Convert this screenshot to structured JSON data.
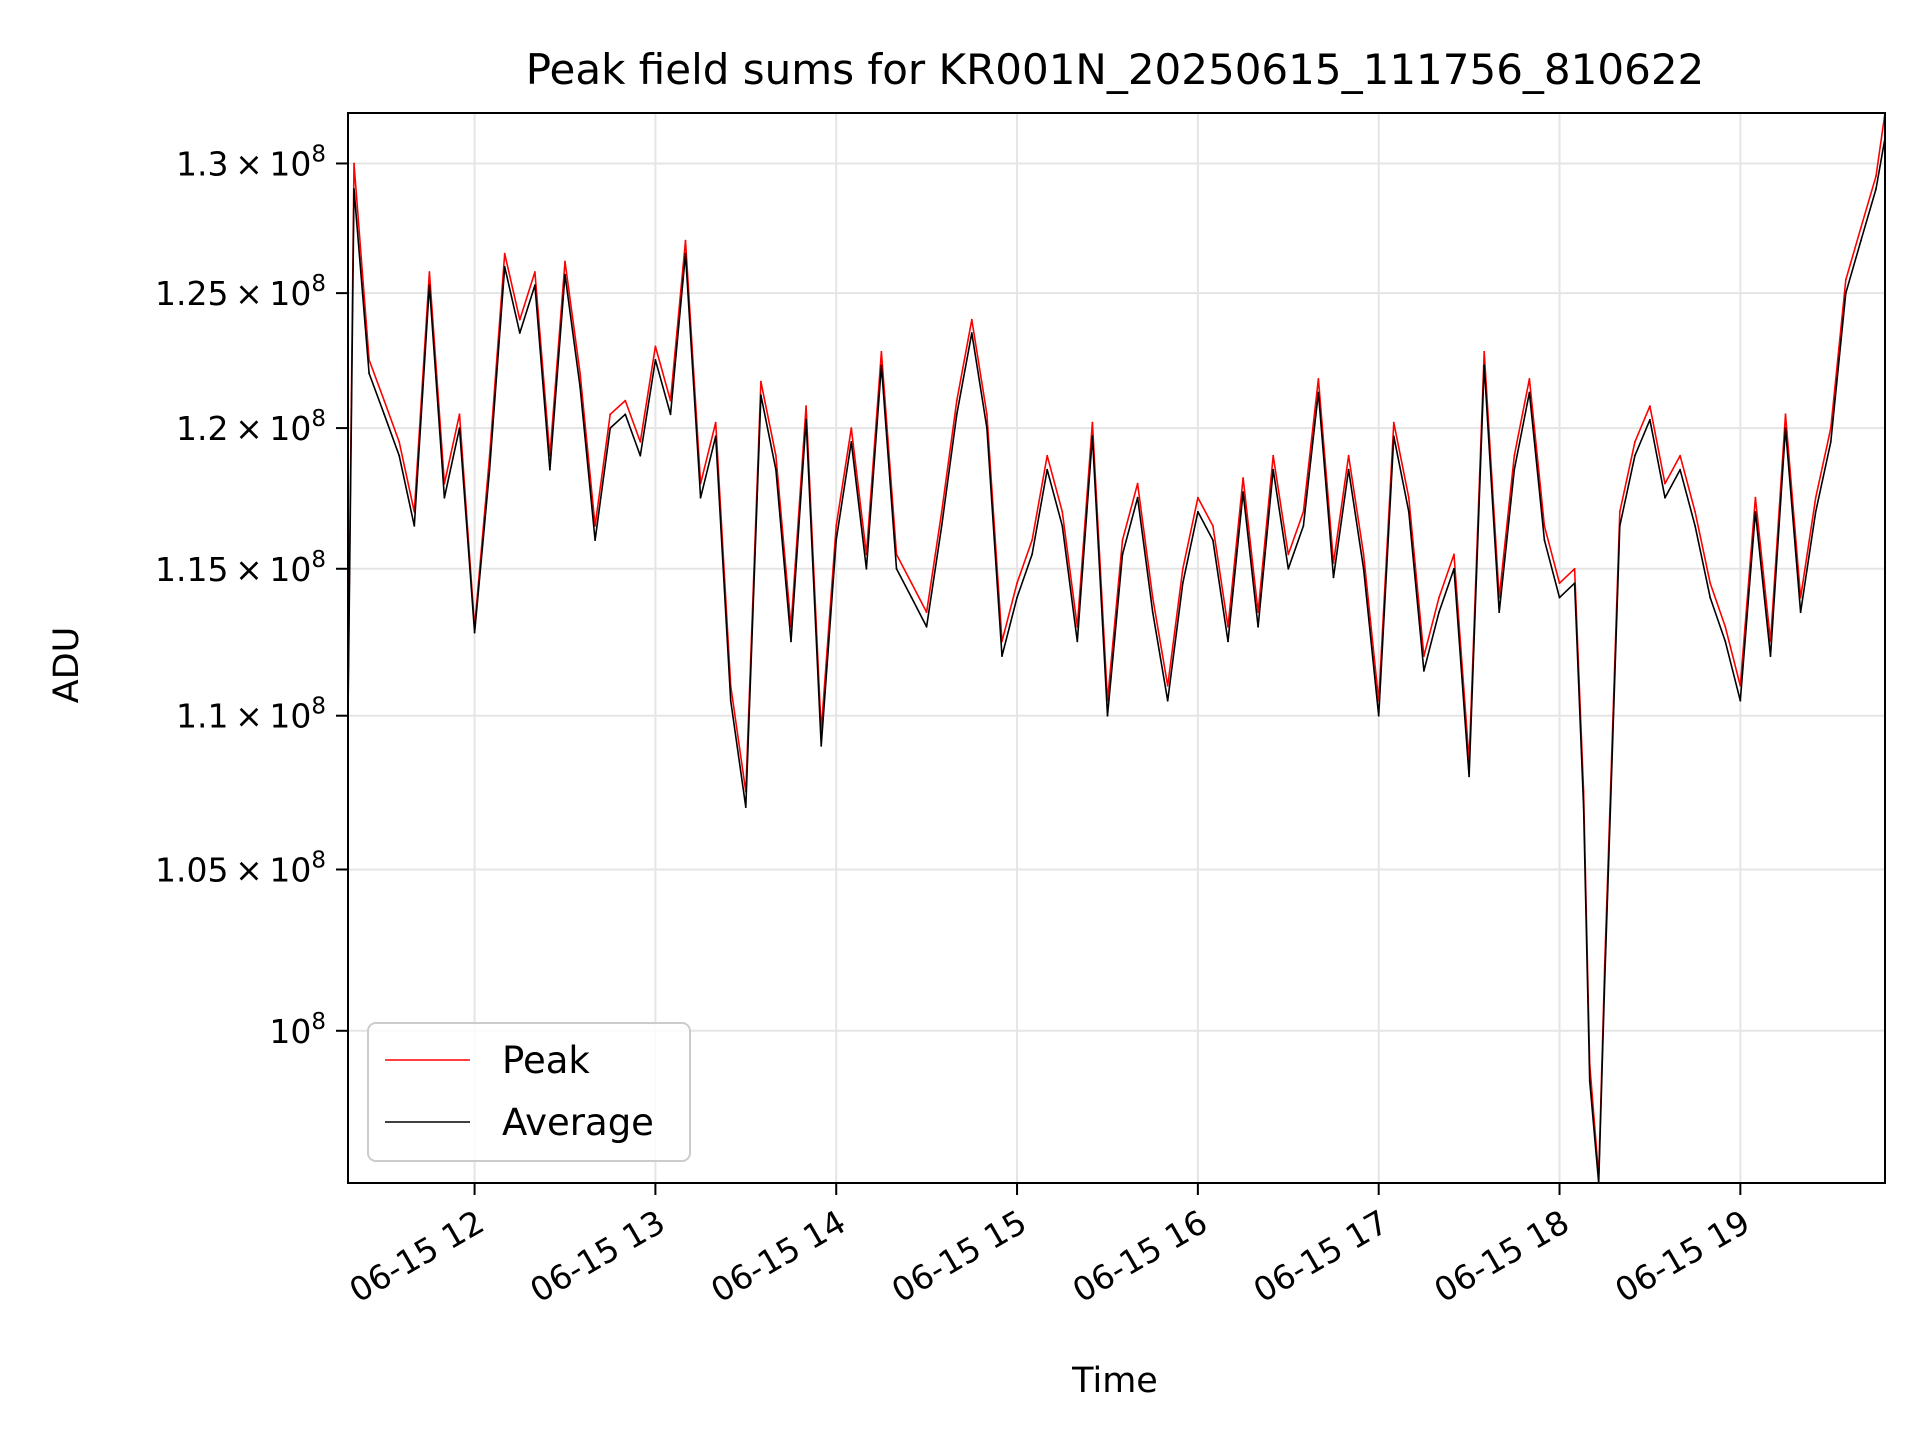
{
  "chart_data": {
    "type": "line",
    "title": "Peak field sums for KR001N_20250615_111756_810622",
    "xlabel": "Time",
    "ylabel": "ADU",
    "y_scale": "log",
    "ylim": [
      95500000,
      132000000
    ],
    "xlim": [
      "06-15 11:18",
      "06-15 19:48"
    ],
    "grid": true,
    "legend_position": "lower-left",
    "x_ticks": [
      {
        "t": "06-15 12:00",
        "label": "06-15 12"
      },
      {
        "t": "06-15 13:00",
        "label": "06-15 13"
      },
      {
        "t": "06-15 14:00",
        "label": "06-15 14"
      },
      {
        "t": "06-15 15:00",
        "label": "06-15 15"
      },
      {
        "t": "06-15 16:00",
        "label": "06-15 16"
      },
      {
        "t": "06-15 17:00",
        "label": "06-15 17"
      },
      {
        "t": "06-15 18:00",
        "label": "06-15 18"
      },
      {
        "t": "06-15 19:00",
        "label": "06-15 19"
      }
    ],
    "y_ticks": [
      {
        "value": 100000000,
        "mantissa": "",
        "exponent": "8"
      },
      {
        "value": 105000000,
        "mantissa": "1.05",
        "exponent": "8"
      },
      {
        "value": 110000000,
        "mantissa": "1.1",
        "exponent": "8"
      },
      {
        "value": 115000000,
        "mantissa": "1.15",
        "exponent": "8"
      },
      {
        "value": 120000000,
        "mantissa": "1.2",
        "exponent": "8"
      },
      {
        "value": 125000000,
        "mantissa": "1.25",
        "exponent": "8"
      },
      {
        "value": 130000000,
        "mantissa": "1.3",
        "exponent": "8"
      }
    ],
    "series": [
      {
        "name": "Peak",
        "color": "#ff0000",
        "x": [
          "11:18",
          "11:20",
          "11:25",
          "11:30",
          "11:35",
          "11:40",
          "11:45",
          "11:50",
          "11:55",
          "12:00",
          "12:05",
          "12:10",
          "12:15",
          "12:20",
          "12:25",
          "12:30",
          "12:35",
          "12:40",
          "12:45",
          "12:50",
          "12:55",
          "13:00",
          "13:05",
          "13:10",
          "13:15",
          "13:20",
          "13:25",
          "13:30",
          "13:35",
          "13:40",
          "13:45",
          "13:50",
          "13:55",
          "14:00",
          "14:05",
          "14:10",
          "14:15",
          "14:20",
          "14:25",
          "14:30",
          "14:35",
          "14:40",
          "14:45",
          "14:50",
          "14:55",
          "15:00",
          "15:05",
          "15:10",
          "15:15",
          "15:20",
          "15:25",
          "15:30",
          "15:35",
          "15:40",
          "15:45",
          "15:50",
          "15:55",
          "16:00",
          "16:05",
          "16:10",
          "16:15",
          "16:20",
          "16:25",
          "16:30",
          "16:35",
          "16:40",
          "16:45",
          "16:50",
          "16:55",
          "17:00",
          "17:05",
          "17:10",
          "17:15",
          "17:20",
          "17:25",
          "17:30",
          "17:35",
          "17:40",
          "17:45",
          "17:50",
          "17:55",
          "18:00",
          "18:05",
          "18:08",
          "18:10",
          "18:13",
          "18:15",
          "18:20",
          "18:25",
          "18:30",
          "18:35",
          "18:40",
          "18:45",
          "18:50",
          "18:55",
          "19:00",
          "19:05",
          "19:10",
          "19:15",
          "19:20",
          "19:25",
          "19:30",
          "19:35",
          "19:40",
          "19:45",
          "19:48"
        ],
        "values": [
          110500000,
          130000000,
          122500000,
          121000000,
          119500000,
          117000000,
          125800000,
          118000000,
          120500000,
          113000000,
          119000000,
          126500000,
          124000000,
          125800000,
          119000000,
          126200000,
          122000000,
          116500000,
          120500000,
          121000000,
          119500000,
          123000000,
          121000000,
          127000000,
          118000000,
          120200000,
          111000000,
          107500000,
          121700000,
          119000000,
          113000000,
          120800000,
          109500000,
          116500000,
          120000000,
          115500000,
          122800000,
          115500000,
          114500000,
          113500000,
          117000000,
          121000000,
          124000000,
          120500000,
          112500000,
          114500000,
          116000000,
          119000000,
          117000000,
          113000000,
          120200000,
          110500000,
          116000000,
          118000000,
          114000000,
          111000000,
          115000000,
          117500000,
          116500000,
          113000000,
          118200000,
          113500000,
          119000000,
          115500000,
          117000000,
          121800000,
          115200000,
          119000000,
          115500000,
          110500000,
          120200000,
          117500000,
          112000000,
          114000000,
          115500000,
          108500000,
          122800000,
          114000000,
          119000000,
          121800000,
          116500000,
          114500000,
          115000000,
          107500000,
          99000000,
          95700000,
          102000000,
          117000000,
          119500000,
          120800000,
          118000000,
          119000000,
          117000000,
          114500000,
          113000000,
          111000000,
          117500000,
          112500000,
          120500000,
          114000000,
          117500000,
          120000000,
          125500000,
          127500000,
          129500000,
          132000000
        ]
      },
      {
        "name": "Average",
        "color": "#000000",
        "x": [
          "11:18",
          "11:20",
          "11:25",
          "11:30",
          "11:35",
          "11:40",
          "11:45",
          "11:50",
          "11:55",
          "12:00",
          "12:05",
          "12:10",
          "12:15",
          "12:20",
          "12:25",
          "12:30",
          "12:35",
          "12:40",
          "12:45",
          "12:50",
          "12:55",
          "13:00",
          "13:05",
          "13:10",
          "13:15",
          "13:20",
          "13:25",
          "13:30",
          "13:35",
          "13:40",
          "13:45",
          "13:50",
          "13:55",
          "14:00",
          "14:05",
          "14:10",
          "14:15",
          "14:20",
          "14:25",
          "14:30",
          "14:35",
          "14:40",
          "14:45",
          "14:50",
          "14:55",
          "15:00",
          "15:05",
          "15:10",
          "15:15",
          "15:20",
          "15:25",
          "15:30",
          "15:35",
          "15:40",
          "15:45",
          "15:50",
          "15:55",
          "16:00",
          "16:05",
          "16:10",
          "16:15",
          "16:20",
          "16:25",
          "16:30",
          "16:35",
          "16:40",
          "16:45",
          "16:50",
          "16:55",
          "17:00",
          "17:05",
          "17:10",
          "17:15",
          "17:20",
          "17:25",
          "17:30",
          "17:35",
          "17:40",
          "17:45",
          "17:50",
          "17:55",
          "18:00",
          "18:05",
          "18:08",
          "18:10",
          "18:13",
          "18:15",
          "18:20",
          "18:25",
          "18:30",
          "18:35",
          "18:40",
          "18:45",
          "18:50",
          "18:55",
          "19:00",
          "19:05",
          "19:10",
          "19:15",
          "19:20",
          "19:25",
          "19:30",
          "19:35",
          "19:40",
          "19:45",
          "19:48"
        ],
        "values": [
          110000000,
          129000000,
          122000000,
          120500000,
          119000000,
          116500000,
          125300000,
          117500000,
          120000000,
          112800000,
          118500000,
          126000000,
          123500000,
          125300000,
          118500000,
          125700000,
          121500000,
          116000000,
          120000000,
          120500000,
          119000000,
          122500000,
          120500000,
          126500000,
          117500000,
          119700000,
          110500000,
          107000000,
          121200000,
          118500000,
          112500000,
          120300000,
          109000000,
          116000000,
          119500000,
          115000000,
          122300000,
          115000000,
          114000000,
          113000000,
          116500000,
          120500000,
          123500000,
          120000000,
          112000000,
          114000000,
          115500000,
          118500000,
          116500000,
          112500000,
          119700000,
          110000000,
          115500000,
          117500000,
          113500000,
          110500000,
          114500000,
          117000000,
          116000000,
          112500000,
          117700000,
          113000000,
          118500000,
          115000000,
          116500000,
          121300000,
          114700000,
          118500000,
          115000000,
          110000000,
          119700000,
          117000000,
          111500000,
          113500000,
          115000000,
          108000000,
          122300000,
          113500000,
          118500000,
          121300000,
          116000000,
          114000000,
          114500000,
          107000000,
          98500000,
          95500000,
          101500000,
          116500000,
          119000000,
          120300000,
          117500000,
          118500000,
          116500000,
          114000000,
          112500000,
          110500000,
          117000000,
          112000000,
          120000000,
          113500000,
          117000000,
          119500000,
          125000000,
          127000000,
          129000000,
          131000000
        ]
      }
    ]
  }
}
